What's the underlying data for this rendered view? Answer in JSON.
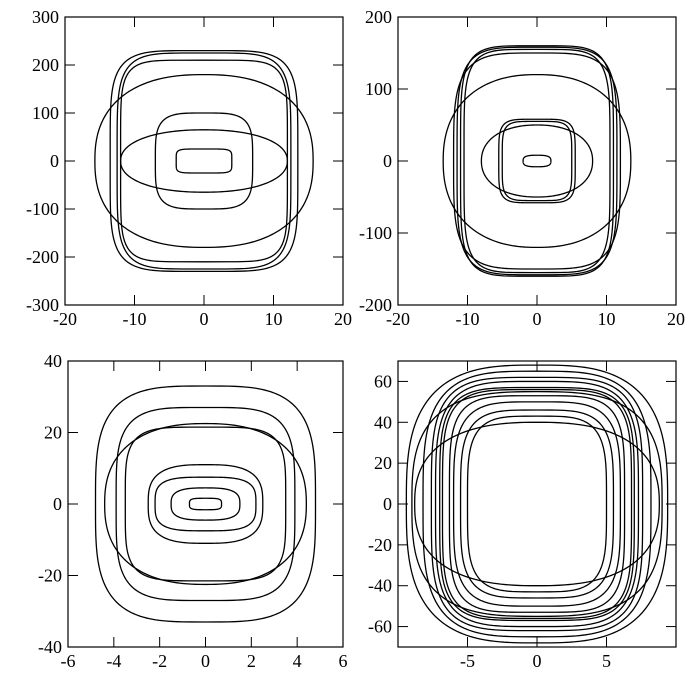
{
  "colors": {
    "line": "#000000",
    "background": "#ffffff"
  },
  "chart_data": [
    {
      "type": "line",
      "title": "",
      "xlabel": "",
      "ylabel": "",
      "xlim": [
        -20,
        20
      ],
      "ylim": [
        -300,
        300
      ],
      "x_ticks": [
        -20,
        -10,
        0,
        10,
        20
      ],
      "y_ticks": [
        -300,
        -200,
        -100,
        0,
        100,
        200,
        300
      ],
      "x_tick_labels": [
        "-20",
        "-10",
        "0",
        "10",
        "20"
      ],
      "y_tick_labels": [
        "-300",
        "-200",
        "-100",
        "0",
        "100",
        "200",
        "300"
      ],
      "series": [
        {
          "values": {
            "a": 4,
            "b": 25,
            "p": 6
          }
        },
        {
          "values": {
            "a": 7,
            "b": 100,
            "p": 4
          }
        },
        {
          "values": {
            "a": 12,
            "b": 65,
            "p": 2.2
          }
        },
        {
          "values": {
            "a": 12.5,
            "b": 225,
            "p": 5
          }
        },
        {
          "values": {
            "a": 13.5,
            "b": 230,
            "p": 5
          }
        },
        {
          "values": {
            "a": 15.7,
            "b": 180,
            "p": 2.4
          }
        },
        {
          "values": {
            "a": 12,
            "b": 210,
            "p": 6
          }
        }
      ]
    },
    {
      "type": "line",
      "title": "",
      "xlabel": "",
      "ylabel": "",
      "xlim": [
        -20,
        20
      ],
      "ylim": [
        -200,
        200
      ],
      "x_ticks": [
        -20,
        -10,
        0,
        10,
        20
      ],
      "y_ticks": [
        -200,
        -100,
        0,
        100,
        200
      ],
      "x_tick_labels": [
        "-20",
        "-10",
        "0",
        "10",
        "20"
      ],
      "y_tick_labels": [
        "-200",
        "-100",
        "0",
        "100",
        "200"
      ],
      "series": [
        {
          "values": {
            "a": 2,
            "b": 8,
            "p": 3
          }
        },
        {
          "values": {
            "a": 5,
            "b": 55,
            "p": 5
          }
        },
        {
          "values": {
            "a": 5.5,
            "b": 58,
            "p": 5
          }
        },
        {
          "values": {
            "a": 8,
            "b": 50,
            "p": 2.2
          }
        },
        {
          "values": {
            "a": 10.5,
            "b": 155,
            "p": 5
          }
        },
        {
          "values": {
            "a": 11,
            "b": 160,
            "p": 5
          }
        },
        {
          "values": {
            "a": 11.5,
            "b": 158,
            "p": 4.5
          }
        },
        {
          "values": {
            "a": 12,
            "b": 150,
            "p": 4
          }
        },
        {
          "values": {
            "a": 13.5,
            "b": 120,
            "p": 2.3
          }
        }
      ]
    },
    {
      "type": "line",
      "title": "",
      "xlabel": "",
      "ylabel": "",
      "xlim": [
        -6,
        6
      ],
      "ylim": [
        -40,
        40
      ],
      "x_ticks": [
        -6,
        -4,
        -2,
        0,
        2,
        4,
        6
      ],
      "y_ticks": [
        -40,
        -20,
        0,
        20,
        40
      ],
      "x_tick_labels": [
        "-6",
        "-4",
        "-2",
        "0",
        "2",
        "4",
        "6"
      ],
      "y_tick_labels": [
        "-40",
        "-20",
        "0",
        "20",
        "40"
      ],
      "series": [
        {
          "values": {
            "a": 0.7,
            "b": 1.6,
            "p": 4
          }
        },
        {
          "values": {
            "a": 1.5,
            "b": 4.5,
            "p": 3
          }
        },
        {
          "values": {
            "a": 2.2,
            "b": 7.5,
            "p": 3.5
          }
        },
        {
          "values": {
            "a": 2.5,
            "b": 11,
            "p": 3
          }
        },
        {
          "values": {
            "a": 3.5,
            "b": 21.5,
            "p": 4.5
          }
        },
        {
          "values": {
            "a": 4.4,
            "b": 22.5,
            "p": 2.4
          }
        },
        {
          "values": {
            "a": 3.9,
            "b": 27,
            "p": 4
          }
        },
        {
          "values": {
            "a": 4.8,
            "b": 33,
            "p": 3.5
          }
        }
      ]
    },
    {
      "type": "line",
      "title": "",
      "xlabel": "",
      "ylabel": "",
      "xlim": [
        -10,
        10
      ],
      "ylim": [
        -70,
        70
      ],
      "x_ticks": [
        -5,
        0,
        5
      ],
      "y_ticks": [
        -60,
        -40,
        -20,
        0,
        20,
        40,
        60
      ],
      "x_tick_labels": [
        "-5",
        "0",
        "5"
      ],
      "y_tick_labels": [
        "-60",
        "-40",
        "-20",
        "0",
        "20",
        "40",
        "60"
      ],
      "series": [
        {
          "values": {
            "a": 5,
            "b": 43,
            "p": 4
          }
        },
        {
          "values": {
            "a": 5.5,
            "b": 46,
            "p": 4
          }
        },
        {
          "values": {
            "a": 6,
            "b": 50,
            "p": 4
          }
        },
        {
          "values": {
            "a": 6.3,
            "b": 53,
            "p": 4.5
          }
        },
        {
          "values": {
            "a": 6.8,
            "b": 56,
            "p": 4.5
          }
        },
        {
          "values": {
            "a": 7,
            "b": 57,
            "p": 4.5
          }
        },
        {
          "values": {
            "a": 7.3,
            "b": 60,
            "p": 4
          }
        },
        {
          "values": {
            "a": 7.6,
            "b": 62,
            "p": 4
          }
        },
        {
          "values": {
            "a": 8.2,
            "b": 65,
            "p": 3.5
          }
        },
        {
          "values": {
            "a": 9,
            "b": 55,
            "p": 3
          }
        },
        {
          "values": {
            "a": 9.4,
            "b": 68,
            "p": 3
          }
        },
        {
          "values": {
            "a": 8.8,
            "b": 40,
            "p": 2.5
          }
        }
      ]
    }
  ]
}
